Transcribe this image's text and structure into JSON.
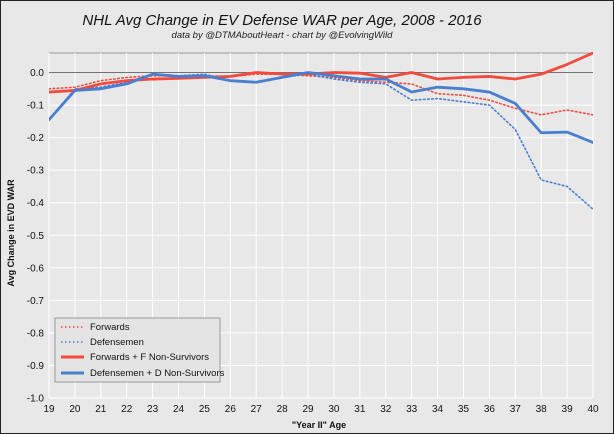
{
  "chart_data": {
    "type": "line",
    "title": "NHL Avg Change in EV Defense WAR per Age, 2008 - 2016",
    "subtitle": "data by @DTMAboutHeart  -  chart by @EvolvingWild",
    "xlabel": "\"Year II\" Age",
    "ylabel": "Avg Change in EVD WAR",
    "xlim": [
      19,
      40
    ],
    "ylim": [
      -1.0,
      0.06
    ],
    "xticks": [
      "19",
      "20",
      "21",
      "22",
      "23",
      "24",
      "25",
      "26",
      "27",
      "28",
      "29",
      "30",
      "31",
      "32",
      "33",
      "34",
      "35",
      "36",
      "37",
      "38",
      "39",
      "40"
    ],
    "yticks": [
      "0.0",
      "-0.1",
      "-0.2",
      "-0.3",
      "-0.4",
      "-0.5",
      "-0.6",
      "-0.7",
      "-0.8",
      "-0.9",
      "-1.0"
    ],
    "legend_position": "bottom-left",
    "x": [
      19,
      20,
      21,
      22,
      23,
      24,
      25,
      26,
      27,
      28,
      29,
      30,
      31,
      32,
      33,
      34,
      35,
      36,
      37,
      38,
      39,
      40
    ],
    "series": [
      {
        "name": "Forwards",
        "color": "#f24a3c",
        "style": "dotted",
        "values": [
          -0.05,
          -0.045,
          -0.025,
          -0.015,
          -0.01,
          -0.01,
          -0.01,
          -0.012,
          -0.005,
          -0.005,
          -0.01,
          -0.015,
          -0.025,
          -0.03,
          -0.035,
          -0.065,
          -0.07,
          -0.085,
          -0.11,
          -0.13,
          -0.115,
          -0.13
        ]
      },
      {
        "name": "Defensemen",
        "color": "#4a7fcf",
        "style": "dotted",
        "values": [
          -0.145,
          -0.05,
          -0.045,
          -0.03,
          -0.005,
          -0.01,
          -0.005,
          -0.025,
          -0.03,
          -0.015,
          -0.005,
          -0.02,
          -0.03,
          -0.035,
          -0.085,
          -0.08,
          -0.09,
          -0.1,
          -0.175,
          -0.33,
          -0.35,
          -0.42
        ]
      },
      {
        "name": "Forwards + F Non-Survivors",
        "color": "#f24a3c",
        "style": "solid",
        "values": [
          -0.06,
          -0.055,
          -0.035,
          -0.025,
          -0.02,
          -0.018,
          -0.015,
          -0.012,
          0.0,
          -0.005,
          -0.005,
          0.0,
          -0.002,
          -0.015,
          0.0,
          -0.02,
          -0.015,
          -0.012,
          -0.02,
          -0.005,
          0.025,
          0.06
        ]
      },
      {
        "name": "Defensemen + D Non-Survivors",
        "color": "#4a7fcf",
        "style": "solid",
        "values": [
          -0.145,
          -0.055,
          -0.05,
          -0.035,
          -0.005,
          -0.012,
          -0.01,
          -0.025,
          -0.03,
          -0.015,
          0.0,
          -0.01,
          -0.02,
          -0.02,
          -0.06,
          -0.045,
          -0.05,
          -0.06,
          -0.095,
          -0.185,
          -0.183,
          -0.215
        ]
      }
    ]
  }
}
